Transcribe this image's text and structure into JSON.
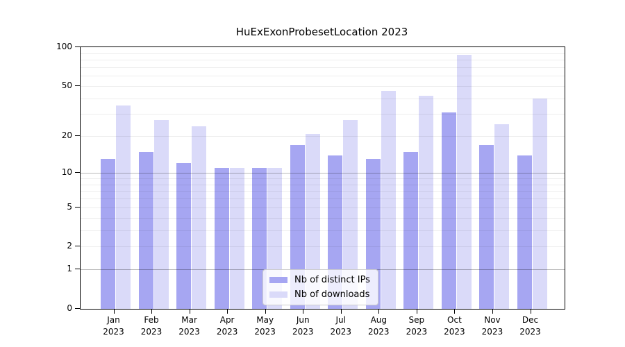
{
  "chart_data": {
    "type": "bar",
    "title": "HuExExonProbesetLocation 2023",
    "categories": [
      "Jan 2023",
      "Feb 2023",
      "Mar 2023",
      "Apr 2023",
      "May 2023",
      "Jun 2023",
      "Jul 2023",
      "Aug 2023",
      "Sep 2023",
      "Oct 2023",
      "Nov 2023",
      "Dec 2023"
    ],
    "series": [
      {
        "name": "Nb of distinct IPs",
        "color": "#a6a6f2",
        "values": [
          13,
          15,
          12,
          11,
          11,
          17,
          14,
          13,
          15,
          31,
          17,
          14
        ]
      },
      {
        "name": "Nb of downloads",
        "color": "#dadaf9",
        "values": [
          35,
          27,
          24,
          11,
          11,
          21,
          27,
          46,
          42,
          87,
          25,
          40
        ]
      }
    ],
    "xlabel": "",
    "ylabel": "",
    "y_scale": "log1p",
    "ylim": [
      0,
      100
    ],
    "y_ticks": [
      0,
      1,
      2,
      5,
      10,
      20,
      50,
      100
    ],
    "y_minor_gridlines": [
      2,
      3,
      4,
      5,
      6,
      7,
      8,
      9,
      20,
      30,
      40,
      50,
      60,
      70,
      80,
      90
    ],
    "y_major_gridlines": [
      1,
      10
    ],
    "grid": "horizontal",
    "legend_position": "lower center inside"
  }
}
